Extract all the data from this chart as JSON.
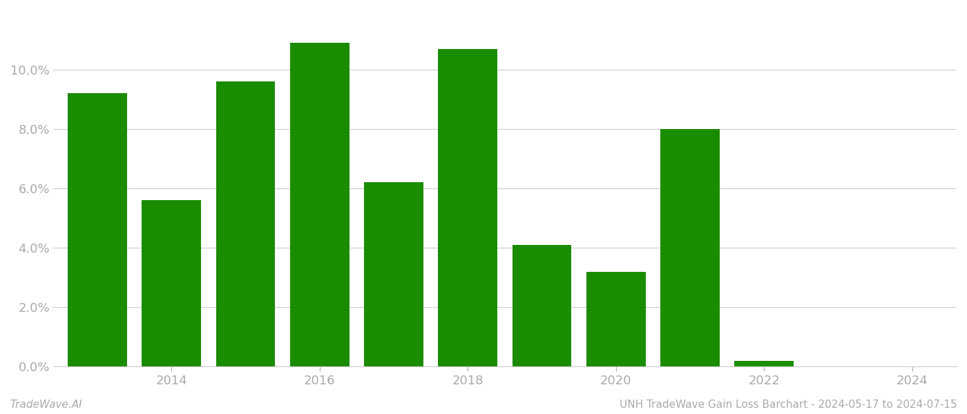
{
  "years": [
    2013,
    2014,
    2015,
    2016,
    2017,
    2018,
    2019,
    2020,
    2021,
    2022,
    2023
  ],
  "values": [
    0.092,
    0.056,
    0.096,
    0.109,
    0.062,
    0.107,
    0.041,
    0.032,
    0.08,
    0.002,
    0.0
  ],
  "bar_color": "#1a8c00",
  "background_color": "#ffffff",
  "grid_color": "#cccccc",
  "title": "UNH TradeWave Gain Loss Barchart - 2024-05-17 to 2024-07-15",
  "footer_left": "TradeWave.AI",
  "ylim": [
    0,
    0.12
  ],
  "ytick_values": [
    0.0,
    0.02,
    0.04,
    0.06,
    0.08,
    0.1
  ],
  "xtick_values": [
    2014,
    2016,
    2018,
    2020,
    2022,
    2024
  ],
  "tick_label_color": "#aaaaaa",
  "footer_color": "#aaaaaa",
  "bar_width": 0.8
}
